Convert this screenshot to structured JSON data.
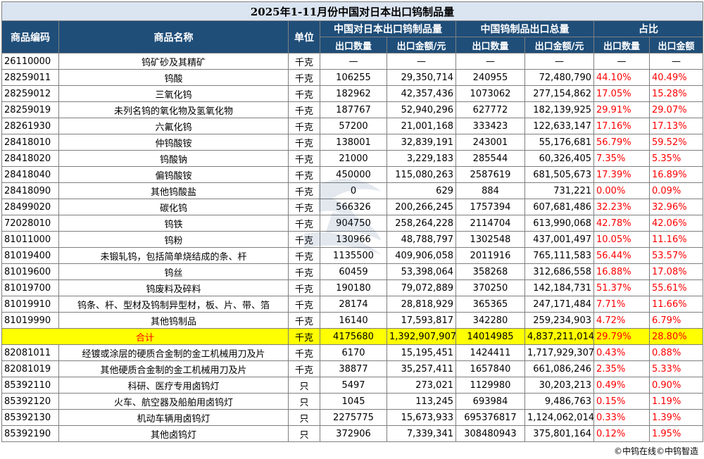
{
  "title": "2025年1-11月份中国对日本出口钨制品量",
  "headers": {
    "code": "商品编码",
    "name": "商品名称",
    "unit": "单位",
    "group_japan": "中国对日本出口钨制品量",
    "group_total": "中国钨制品出口总量",
    "group_share": "占比",
    "qty": "出口数量",
    "amount": "出口金额/元",
    "share_qty": "出口数量",
    "share_amount": "出口金额"
  },
  "rows": [
    [
      "26110000",
      "钨矿砂及其精矿",
      "千克",
      "—",
      "—",
      "—",
      "—",
      "—",
      "—"
    ],
    [
      "28259011",
      "钨酸",
      "千克",
      "106255",
      "29,350,714",
      "240955",
      "72,480,790",
      "44.10%",
      "40.49%"
    ],
    [
      "28259012",
      "三氧化钨",
      "千克",
      "182962",
      "42,357,436",
      "1073062",
      "277,154,862",
      "17.05%",
      "15.28%"
    ],
    [
      "28259019",
      "未列名钨的氧化物及氢氧化物",
      "千克",
      "187767",
      "52,940,296",
      "627772",
      "182,139,925",
      "29.91%",
      "29.07%"
    ],
    [
      "28261930",
      "六氟化钨",
      "千克",
      "57200",
      "21,001,168",
      "333423",
      "122,633,147",
      "17.16%",
      "17.13%"
    ],
    [
      "28418010",
      "仲钨酸铵",
      "千克",
      "138001",
      "32,839,191",
      "243001",
      "55,176,681",
      "56.79%",
      "59.52%"
    ],
    [
      "28418020",
      "钨酸钠",
      "千克",
      "21000",
      "3,229,183",
      "285544",
      "60,326,405",
      "7.35%",
      "5.35%"
    ],
    [
      "28418040",
      "偏钨酸铵",
      "千克",
      "450000",
      "115,080,263",
      "2587619",
      "681,505,673",
      "17.39%",
      "16.89%"
    ],
    [
      "28418090",
      "其他钨酸盐",
      "千克",
      "0",
      "629",
      "884",
      "731,221",
      "0.00%",
      "0.09%"
    ],
    [
      "28499020",
      "碳化钨",
      "千克",
      "566326",
      "200,266,245",
      "1757394",
      "607,681,486",
      "32.23%",
      "32.96%"
    ],
    [
      "72028010",
      "钨铁",
      "千克",
      "904750",
      "258,264,228",
      "2114704",
      "613,990,068",
      "42.78%",
      "42.06%"
    ],
    [
      "81011000",
      "钨粉",
      "千克",
      "130966",
      "48,788,797",
      "1302548",
      "437,001,497",
      "10.05%",
      "11.16%"
    ],
    [
      "81019400",
      "未锻轧钨，包括简单烧结成的条、杆",
      "千克",
      "1135500",
      "409,906,058",
      "2011916",
      "765,111,583",
      "56.44%",
      "53.57%"
    ],
    [
      "81019600",
      "钨丝",
      "千克",
      "60459",
      "53,398,064",
      "358268",
      "312,686,558",
      "16.88%",
      "17.08%"
    ],
    [
      "81019700",
      "钨废料及碎料",
      "千克",
      "190180",
      "79,072,889",
      "370250",
      "142,184,731",
      "51.37%",
      "55.61%"
    ],
    [
      "81019910",
      "钨条、杆、型材及钨制异型材，板、片、带、箔",
      "千克",
      "28174",
      "28,818,929",
      "365365",
      "247,171,484",
      "7.71%",
      "11.66%"
    ],
    [
      "81019990",
      "其他钨制品",
      "千克",
      "16140",
      "17,593,817",
      "342280",
      "259,234,903",
      "4.72%",
      "6.79%"
    ]
  ],
  "total": [
    "合计",
    "千克",
    "4175680",
    "1,392,907,907",
    "14014985",
    "4,837,211,014",
    "29.79%",
    "28.80%"
  ],
  "rows2": [
    [
      "82081011",
      "经镀或涂层的硬质合金制的金工机械用刀及片",
      "千克",
      "6170",
      "15,195,451",
      "1424411",
      "1,717,929,307",
      "0.43%",
      "0.88%"
    ],
    [
      "82081019",
      "其他硬质合金制的金工机械用刀及片",
      "千克",
      "38877",
      "35,257,411",
      "1657840",
      "661,086,246",
      "2.35%",
      "5.33%"
    ],
    [
      "85392110",
      "科研、医疗专用卤钨灯",
      "只",
      "5497",
      "273,021",
      "1129980",
      "30,203,213",
      "0.49%",
      "0.90%"
    ],
    [
      "85392120",
      "火车、航空器及船舶用卤钨灯",
      "只",
      "1045",
      "113,245",
      "693984",
      "9,486,763",
      "0.15%",
      "1.19%"
    ],
    [
      "85392130",
      "机动车辆用卤钨灯",
      "只",
      "2275775",
      "15,673,933",
      "695376817",
      "1,124,062,014",
      "0.33%",
      "1.39%"
    ],
    [
      "85392190",
      "其他卤钨灯",
      "只",
      "372906",
      "7,339,341",
      "308480943",
      "375,801,164",
      "0.12%",
      "1.95%"
    ]
  ],
  "footer": "©中钨在线©中钨智造",
  "colors": {
    "header_bg": "#1f4e79",
    "title_bg": "#dbe5f1",
    "total_bg": "#ffff00",
    "share_text": "#ff0000"
  }
}
